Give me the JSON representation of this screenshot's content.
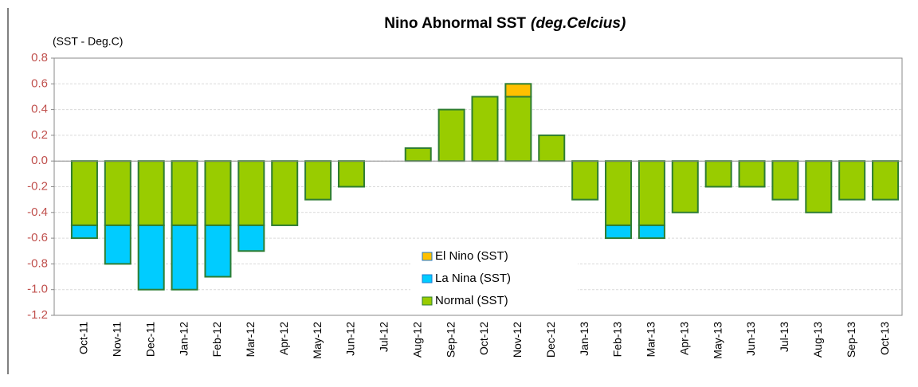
{
  "chart_data": {
    "type": "stacked_bar",
    "title": "Nino Abnormal  SST",
    "title_unit": "(deg.Celcius)",
    "y_label": "(SST - Deg.C)",
    "categories": [
      "Oct-11",
      "Nov-11",
      "Dec-11",
      "Jan-12",
      "Feb-12",
      "Mar-12",
      "Apr-12",
      "May-12",
      "Jun-12",
      "Jul-12",
      "Aug-12",
      "Sep-12",
      "Oct-12",
      "Nov-12",
      "Dec-12",
      "Jan-13",
      "Feb-13",
      "Mar-13",
      "Apr-13",
      "May-13",
      "Jun-13",
      "Jul-13",
      "Aug-13",
      "Sep-13",
      "Oct-13"
    ],
    "series": [
      {
        "name": "El Nino (SST)",
        "color": "#ffc000",
        "values": [
          0,
          0,
          0,
          0,
          0,
          0,
          0,
          0,
          0,
          0,
          0,
          0,
          0,
          0.1,
          0,
          0,
          0,
          0,
          0,
          0,
          0,
          0,
          0,
          0,
          0
        ]
      },
      {
        "name": "La Nina (SST)",
        "color": "#00ccff",
        "values": [
          -0.1,
          -0.3,
          -0.5,
          -0.5,
          -0.4,
          -0.2,
          0,
          0,
          0,
          0,
          0,
          0,
          0,
          0,
          0,
          0,
          -0.1,
          -0.1,
          0,
          0,
          0,
          0,
          0,
          0,
          0
        ]
      },
      {
        "name": "Normal (SST)",
        "color": "#99cc00",
        "values": [
          -0.5,
          -0.5,
          -0.5,
          -0.5,
          -0.5,
          -0.5,
          -0.5,
          -0.3,
          -0.2,
          0,
          0.1,
          0.4,
          0.5,
          0.5,
          0.2,
          -0.3,
          -0.5,
          -0.5,
          -0.4,
          -0.2,
          -0.2,
          -0.3,
          -0.4,
          -0.3,
          -0.3
        ]
      }
    ],
    "ylim": [
      -1.2,
      0.8
    ],
    "yticks": [
      -1.2,
      {
        "value": -1.0,
        "label": "-1.0"
      },
      -0.8,
      -0.6,
      -0.4,
      -0.2,
      {
        "value": 0,
        "label": "0.0"
      },
      0.2,
      0.4,
      0.6,
      0.8
    ],
    "grid": true
  }
}
